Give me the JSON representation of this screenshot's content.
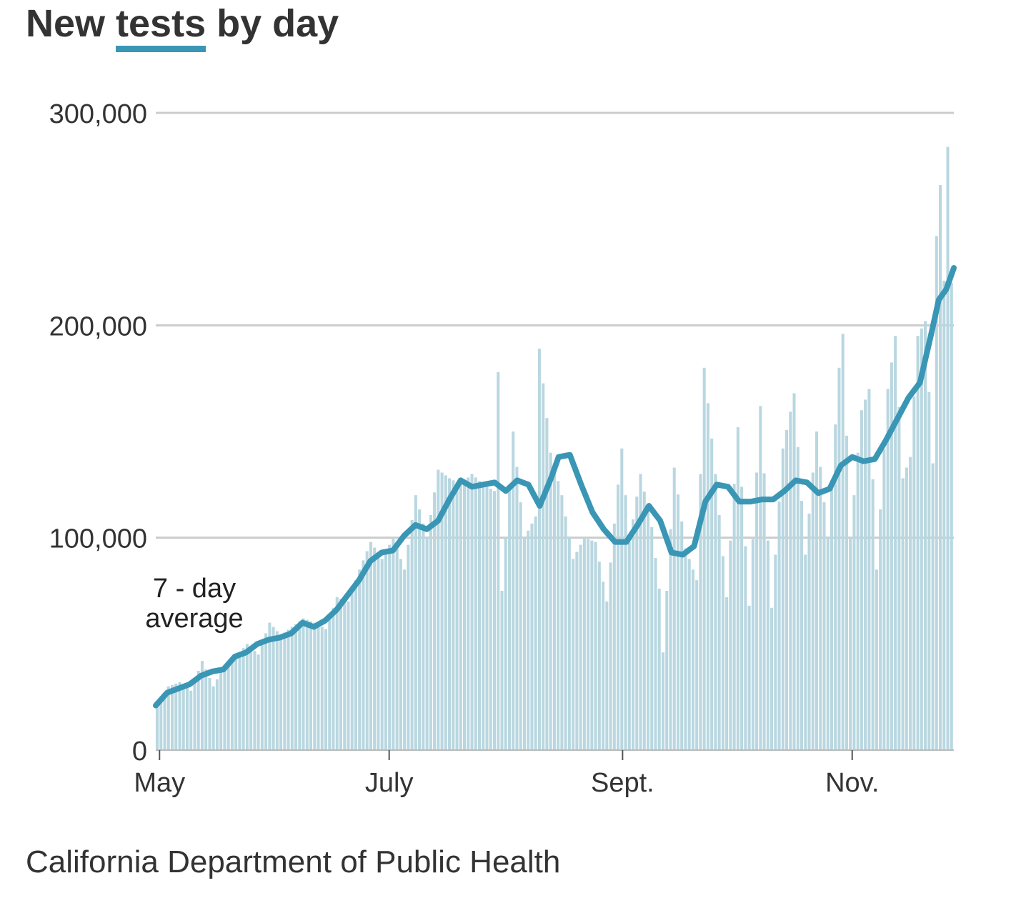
{
  "title": {
    "before": "New ",
    "highlight": "tests",
    "after": " by day"
  },
  "source": "California Department of Public Health",
  "annotation": {
    "line1": "7 - day",
    "line2": "average"
  },
  "colors": {
    "bars": "#b9d7e0",
    "line": "#3a96b5",
    "grid": "#cccccc",
    "text": "#333333"
  },
  "chart_data": {
    "type": "bar",
    "y_ticks": [
      {
        "value": 0,
        "label": "0"
      },
      {
        "value": 100000,
        "label": "100,000"
      },
      {
        "value": 200000,
        "label": "200,000"
      },
      {
        "value": 300000,
        "label": "300,000"
      }
    ],
    "x_ticks": [
      {
        "date": "2020-05-01",
        "label": "May"
      },
      {
        "date": "2020-07-01",
        "label": "July"
      },
      {
        "date": "2020-09-01",
        "label": "Sept."
      },
      {
        "date": "2020-11-01",
        "label": "Nov."
      }
    ],
    "x_range": [
      "2020-04-30",
      "2020-11-28"
    ],
    "ylim": [
      0,
      300000
    ],
    "grid": true,
    "series": [
      {
        "kind": "bars",
        "points": [
          [
            "2020-04-30",
            21000
          ],
          [
            "2020-05-03",
            30000
          ],
          [
            "2020-05-06",
            32000
          ],
          [
            "2020-05-09",
            28000
          ],
          [
            "2020-05-12",
            42000
          ],
          [
            "2020-05-15",
            30000
          ],
          [
            "2020-05-18",
            40000
          ],
          [
            "2020-05-21",
            44000
          ],
          [
            "2020-05-24",
            50000
          ],
          [
            "2020-05-27",
            45000
          ],
          [
            "2020-05-30",
            60000
          ],
          [
            "2020-06-02",
            54000
          ],
          [
            "2020-06-05",
            58000
          ],
          [
            "2020-06-08",
            62000
          ],
          [
            "2020-06-11",
            60000
          ],
          [
            "2020-06-14",
            57000
          ],
          [
            "2020-06-17",
            72000
          ],
          [
            "2020-06-20",
            70000
          ],
          [
            "2020-06-23",
            85000
          ],
          [
            "2020-06-26",
            98000
          ],
          [
            "2020-06-29",
            90000
          ],
          [
            "2020-07-02",
            100000
          ],
          [
            "2020-07-05",
            85000
          ],
          [
            "2020-07-08",
            120000
          ],
          [
            "2020-07-11",
            100000
          ],
          [
            "2020-07-14",
            132000
          ],
          [
            "2020-07-17",
            128000
          ],
          [
            "2020-07-20",
            125000
          ],
          [
            "2020-07-23",
            130000
          ],
          [
            "2020-07-26",
            125000
          ],
          [
            "2020-07-29",
            122000
          ],
          [
            "2020-07-30",
            178000
          ],
          [
            "2020-07-31",
            75000
          ],
          [
            "2020-08-03",
            150000
          ],
          [
            "2020-08-06",
            100000
          ],
          [
            "2020-08-09",
            110000
          ],
          [
            "2020-08-10",
            189000
          ],
          [
            "2020-08-13",
            140000
          ],
          [
            "2020-08-16",
            120000
          ],
          [
            "2020-08-19",
            90000
          ],
          [
            "2020-08-22",
            100000
          ],
          [
            "2020-08-25",
            98000
          ],
          [
            "2020-08-28",
            70000
          ],
          [
            "2020-08-31",
            125000
          ],
          [
            "2020-09-01",
            142000
          ],
          [
            "2020-09-03",
            98000
          ],
          [
            "2020-09-06",
            130000
          ],
          [
            "2020-09-09",
            105000
          ],
          [
            "2020-09-11",
            76000
          ],
          [
            "2020-09-12",
            46000
          ],
          [
            "2020-09-15",
            133000
          ],
          [
            "2020-09-18",
            95000
          ],
          [
            "2020-09-21",
            80000
          ],
          [
            "2020-09-23",
            180000
          ],
          [
            "2020-09-26",
            130000
          ],
          [
            "2020-09-29",
            72000
          ],
          [
            "2020-10-02",
            152000
          ],
          [
            "2020-10-05",
            68000
          ],
          [
            "2020-10-08",
            162000
          ],
          [
            "2020-10-11",
            67000
          ],
          [
            "2020-10-14",
            142000
          ],
          [
            "2020-10-17",
            168000
          ],
          [
            "2020-10-20",
            92000
          ],
          [
            "2020-10-23",
            150000
          ],
          [
            "2020-10-26",
            100000
          ],
          [
            "2020-10-29",
            180000
          ],
          [
            "2020-10-30",
            196000
          ],
          [
            "2020-11-01",
            100000
          ],
          [
            "2020-11-04",
            160000
          ],
          [
            "2020-11-06",
            170000
          ],
          [
            "2020-11-08",
            85000
          ],
          [
            "2020-11-11",
            170000
          ],
          [
            "2020-11-13",
            195000
          ],
          [
            "2020-11-15",
            128000
          ],
          [
            "2020-11-17",
            138000
          ],
          [
            "2020-11-19",
            195000
          ],
          [
            "2020-11-21",
            202000
          ],
          [
            "2020-11-23",
            135000
          ],
          [
            "2020-11-24",
            242000
          ],
          [
            "2020-11-25",
            266000
          ],
          [
            "2020-11-26",
            221000
          ],
          [
            "2020-11-27",
            284000
          ],
          [
            "2020-11-28",
            220000
          ]
        ]
      },
      {
        "kind": "line",
        "points": [
          [
            "2020-04-30",
            21000
          ],
          [
            "2020-05-03",
            27000
          ],
          [
            "2020-05-06",
            29000
          ],
          [
            "2020-05-09",
            31000
          ],
          [
            "2020-05-12",
            35000
          ],
          [
            "2020-05-15",
            37000
          ],
          [
            "2020-05-18",
            38000
          ],
          [
            "2020-05-21",
            44000
          ],
          [
            "2020-05-24",
            46000
          ],
          [
            "2020-05-27",
            50000
          ],
          [
            "2020-05-30",
            52000
          ],
          [
            "2020-06-02",
            53000
          ],
          [
            "2020-06-05",
            55000
          ],
          [
            "2020-06-08",
            60000
          ],
          [
            "2020-06-11",
            58000
          ],
          [
            "2020-06-14",
            61000
          ],
          [
            "2020-06-17",
            66000
          ],
          [
            "2020-06-20",
            73000
          ],
          [
            "2020-06-23",
            80000
          ],
          [
            "2020-06-26",
            89000
          ],
          [
            "2020-06-29",
            93000
          ],
          [
            "2020-07-02",
            94000
          ],
          [
            "2020-07-05",
            101000
          ],
          [
            "2020-07-08",
            106000
          ],
          [
            "2020-07-11",
            104000
          ],
          [
            "2020-07-14",
            108000
          ],
          [
            "2020-07-17",
            118000
          ],
          [
            "2020-07-20",
            127000
          ],
          [
            "2020-07-23",
            124000
          ],
          [
            "2020-07-26",
            125000
          ],
          [
            "2020-07-29",
            126000
          ],
          [
            "2020-08-01",
            122000
          ],
          [
            "2020-08-04",
            127000
          ],
          [
            "2020-08-07",
            125000
          ],
          [
            "2020-08-10",
            115000
          ],
          [
            "2020-08-13",
            128000
          ],
          [
            "2020-08-15",
            138000
          ],
          [
            "2020-08-18",
            139000
          ],
          [
            "2020-08-21",
            125000
          ],
          [
            "2020-08-24",
            112000
          ],
          [
            "2020-08-27",
            104000
          ],
          [
            "2020-08-30",
            98000
          ],
          [
            "2020-09-02",
            98000
          ],
          [
            "2020-09-05",
            106000
          ],
          [
            "2020-09-08",
            115000
          ],
          [
            "2020-09-11",
            108000
          ],
          [
            "2020-09-14",
            93000
          ],
          [
            "2020-09-17",
            92000
          ],
          [
            "2020-09-20",
            96000
          ],
          [
            "2020-09-23",
            117000
          ],
          [
            "2020-09-26",
            125000
          ],
          [
            "2020-09-29",
            124000
          ],
          [
            "2020-10-02",
            117000
          ],
          [
            "2020-10-05",
            117000
          ],
          [
            "2020-10-08",
            118000
          ],
          [
            "2020-10-11",
            118000
          ],
          [
            "2020-10-14",
            122000
          ],
          [
            "2020-10-17",
            127000
          ],
          [
            "2020-10-20",
            126000
          ],
          [
            "2020-10-23",
            121000
          ],
          [
            "2020-10-26",
            123000
          ],
          [
            "2020-10-29",
            134000
          ],
          [
            "2020-11-01",
            138000
          ],
          [
            "2020-11-04",
            136000
          ],
          [
            "2020-11-07",
            137000
          ],
          [
            "2020-11-10",
            146000
          ],
          [
            "2020-11-13",
            156000
          ],
          [
            "2020-11-16",
            166000
          ],
          [
            "2020-11-19",
            173000
          ],
          [
            "2020-11-22",
            196000
          ],
          [
            "2020-11-24",
            212000
          ],
          [
            "2020-11-26",
            217000
          ],
          [
            "2020-11-28",
            227000
          ]
        ]
      }
    ]
  }
}
